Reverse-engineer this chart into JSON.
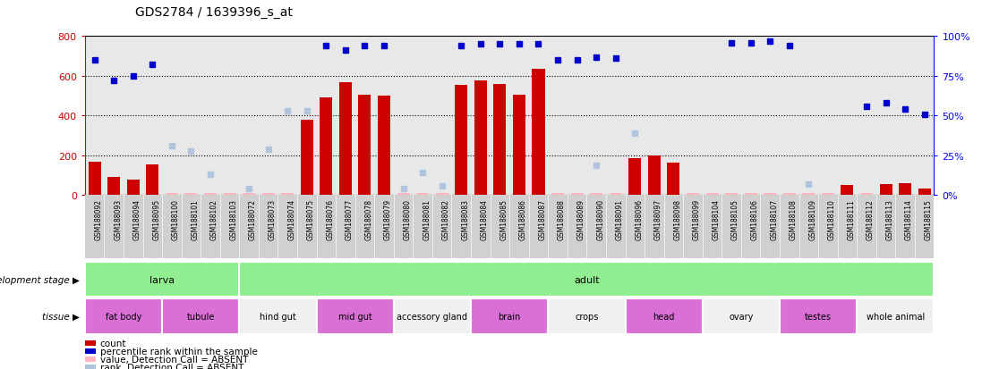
{
  "title": "GDS2784 / 1639396_s_at",
  "samples": [
    "GSM188092",
    "GSM188093",
    "GSM188094",
    "GSM188095",
    "GSM188100",
    "GSM188101",
    "GSM188102",
    "GSM188103",
    "GSM188072",
    "GSM188073",
    "GSM188074",
    "GSM188075",
    "GSM188076",
    "GSM188077",
    "GSM188078",
    "GSM188079",
    "GSM188080",
    "GSM188081",
    "GSM188082",
    "GSM188083",
    "GSM188084",
    "GSM188085",
    "GSM188086",
    "GSM188087",
    "GSM188088",
    "GSM188089",
    "GSM188090",
    "GSM188091",
    "GSM188096",
    "GSM188097",
    "GSM188098",
    "GSM188099",
    "GSM188104",
    "GSM188105",
    "GSM188106",
    "GSM188107",
    "GSM188108",
    "GSM188109",
    "GSM188110",
    "GSM188111",
    "GSM188112",
    "GSM188113",
    "GSM188114",
    "GSM188115"
  ],
  "count_values": [
    170,
    90,
    80,
    155,
    12,
    12,
    12,
    12,
    12,
    12,
    12,
    380,
    490,
    570,
    505,
    500,
    12,
    12,
    12,
    555,
    575,
    560,
    505,
    635,
    12,
    12,
    12,
    12,
    185,
    200,
    165,
    12,
    12,
    12,
    12,
    12,
    12,
    12,
    12,
    50,
    12,
    55,
    60,
    35
  ],
  "rank_pct": [
    85,
    72,
    75,
    82,
    null,
    null,
    null,
    null,
    null,
    null,
    null,
    null,
    94,
    91,
    94,
    94,
    null,
    null,
    null,
    94,
    95,
    95,
    95,
    95,
    85,
    85,
    87,
    86,
    null,
    null,
    null,
    null,
    null,
    96,
    96,
    97,
    94,
    null,
    null,
    null,
    56,
    58,
    54,
    51
  ],
  "absent_rank_pct": [
    null,
    null,
    null,
    null,
    31,
    28,
    13,
    null,
    4,
    29,
    53,
    53,
    null,
    null,
    null,
    null,
    4,
    14,
    6,
    null,
    null,
    null,
    null,
    null,
    null,
    null,
    19,
    null,
    39,
    null,
    null,
    null,
    null,
    null,
    null,
    null,
    null,
    7,
    null,
    null,
    null,
    null,
    null,
    null
  ],
  "is_absent": [
    false,
    false,
    false,
    false,
    true,
    true,
    true,
    true,
    true,
    true,
    true,
    false,
    false,
    false,
    false,
    false,
    true,
    true,
    true,
    false,
    false,
    false,
    false,
    false,
    true,
    true,
    true,
    true,
    false,
    false,
    false,
    true,
    true,
    true,
    true,
    true,
    true,
    true,
    true,
    false,
    true,
    false,
    false,
    false
  ],
  "development_stage_groups": [
    {
      "label": "larva",
      "start": 0,
      "end": 7,
      "color": "#90EE90"
    },
    {
      "label": "adult",
      "start": 8,
      "end": 43,
      "color": "#90EE90"
    }
  ],
  "tissue_groups": [
    {
      "label": "fat body",
      "start": 0,
      "end": 3,
      "color": "#DA70D6"
    },
    {
      "label": "tubule",
      "start": 4,
      "end": 7,
      "color": "#DA70D6"
    },
    {
      "label": "hind gut",
      "start": 8,
      "end": 11,
      "color": "#f0f0f0"
    },
    {
      "label": "mid gut",
      "start": 12,
      "end": 15,
      "color": "#DA70D6"
    },
    {
      "label": "accessory gland",
      "start": 16,
      "end": 19,
      "color": "#f0f0f0"
    },
    {
      "label": "brain",
      "start": 20,
      "end": 23,
      "color": "#DA70D6"
    },
    {
      "label": "crops",
      "start": 24,
      "end": 27,
      "color": "#f0f0f0"
    },
    {
      "label": "head",
      "start": 28,
      "end": 31,
      "color": "#DA70D6"
    },
    {
      "label": "ovary",
      "start": 32,
      "end": 35,
      "color": "#f0f0f0"
    },
    {
      "label": "testes",
      "start": 36,
      "end": 39,
      "color": "#DA70D6"
    },
    {
      "label": "whole animal",
      "start": 40,
      "end": 43,
      "color": "#f0f0f0"
    }
  ],
  "bar_color": "#cc0000",
  "rank_color": "#0000cc",
  "absent_count_color": "#ffb6c1",
  "absent_rank_color": "#b0c4de",
  "bg_color": "#e8e8e8",
  "tick_bg_color": "#d0d0d0",
  "legend_items": [
    {
      "color": "#cc0000",
      "label": "count"
    },
    {
      "color": "#0000cc",
      "label": "percentile rank within the sample"
    },
    {
      "color": "#ffb6c1",
      "label": "value, Detection Call = ABSENT"
    },
    {
      "color": "#b0c4de",
      "label": "rank, Detection Call = ABSENT"
    }
  ]
}
